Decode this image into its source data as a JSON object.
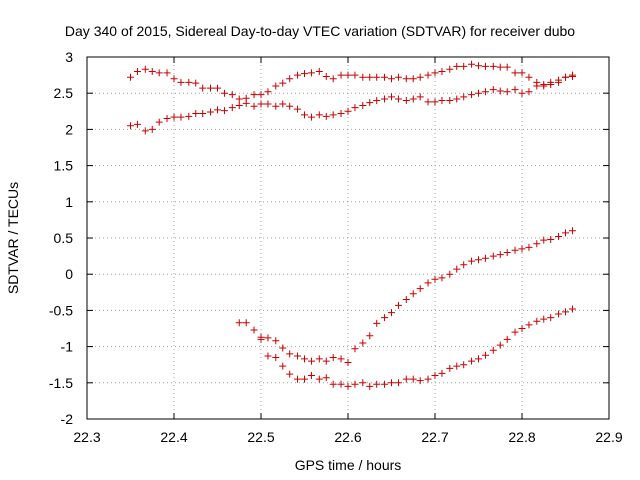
{
  "chart_data": {
    "type": "scatter",
    "title": "Day 340 of 2015, Sidereal Day-to-day VTEC variation (SDTVAR) for receiver dubo",
    "xlabel": "GPS time / hours",
    "ylabel": "SDTVAR / TECUs",
    "xlim": [
      22.3,
      22.9
    ],
    "ylim": [
      -2,
      3
    ],
    "xticks": [
      "22.3",
      "22.4",
      "22.5",
      "22.6",
      "22.7",
      "22.8",
      "22.9"
    ],
    "yticks": [
      "3",
      "2.5",
      "2",
      "1.5",
      "1",
      "0.5",
      "0",
      "-0.5",
      "-1",
      "-1.5",
      "-2"
    ],
    "grid": true,
    "marker": "+",
    "color": "#cc0000",
    "series": [
      {
        "name": "satellite-a",
        "x": [
          22.35,
          22.358,
          22.367,
          22.375,
          22.383,
          22.392,
          22.4,
          22.408,
          22.417,
          22.425,
          22.433,
          22.442,
          22.45,
          22.458,
          22.467,
          22.475,
          22.483,
          22.492,
          22.5,
          22.508,
          22.517,
          22.525,
          22.533,
          22.542,
          22.55,
          22.558,
          22.567,
          22.575,
          22.583,
          22.592,
          22.6,
          22.608,
          22.617,
          22.625,
          22.633,
          22.642,
          22.65,
          22.658,
          22.667,
          22.675,
          22.683,
          22.692,
          22.7,
          22.708,
          22.717,
          22.725,
          22.733,
          22.742,
          22.75,
          22.758,
          22.767,
          22.775,
          22.783,
          22.792,
          22.8,
          22.808,
          22.817,
          22.825,
          22.833,
          22.842,
          22.85,
          22.858
        ],
        "y": [
          2.72,
          2.8,
          2.83,
          2.8,
          2.78,
          2.78,
          2.7,
          2.65,
          2.65,
          2.64,
          2.57,
          2.57,
          2.57,
          2.5,
          2.48,
          2.42,
          2.43,
          2.48,
          2.48,
          2.52,
          2.6,
          2.64,
          2.7,
          2.75,
          2.77,
          2.78,
          2.8,
          2.73,
          2.7,
          2.75,
          2.75,
          2.75,
          2.72,
          2.72,
          2.72,
          2.72,
          2.7,
          2.72,
          2.7,
          2.7,
          2.72,
          2.75,
          2.78,
          2.8,
          2.83,
          2.87,
          2.87,
          2.9,
          2.88,
          2.87,
          2.87,
          2.86,
          2.86,
          2.78,
          2.78,
          2.72,
          2.65,
          2.62,
          2.65,
          2.68,
          2.72,
          2.73
        ]
      },
      {
        "name": "satellite-b",
        "x": [
          22.35,
          22.358,
          22.367,
          22.375,
          22.383,
          22.392,
          22.4,
          22.408,
          22.417,
          22.425,
          22.433,
          22.442,
          22.45,
          22.458,
          22.467,
          22.475,
          22.483,
          22.492,
          22.5,
          22.508,
          22.517,
          22.525,
          22.533,
          22.542,
          22.55,
          22.558,
          22.567,
          22.575,
          22.583,
          22.592,
          22.6,
          22.608,
          22.617,
          22.625,
          22.633,
          22.642,
          22.65,
          22.658,
          22.667,
          22.675,
          22.683,
          22.692,
          22.7,
          22.708,
          22.717,
          22.725,
          22.733,
          22.742,
          22.75,
          22.758,
          22.767,
          22.775,
          22.783,
          22.792,
          22.8,
          22.808,
          22.817,
          22.825,
          22.833,
          22.842,
          22.85,
          22.858
        ],
        "y": [
          2.05,
          2.07,
          1.98,
          2.0,
          2.1,
          2.15,
          2.17,
          2.17,
          2.18,
          2.22,
          2.22,
          2.24,
          2.27,
          2.26,
          2.3,
          2.33,
          2.36,
          2.32,
          2.35,
          2.35,
          2.32,
          2.35,
          2.32,
          2.28,
          2.2,
          2.17,
          2.2,
          2.18,
          2.2,
          2.22,
          2.25,
          2.3,
          2.33,
          2.37,
          2.4,
          2.42,
          2.45,
          2.42,
          2.4,
          2.42,
          2.45,
          2.38,
          2.38,
          2.4,
          2.4,
          2.42,
          2.45,
          2.48,
          2.5,
          2.52,
          2.55,
          2.53,
          2.52,
          2.55,
          2.5,
          2.52,
          2.6,
          2.6,
          2.62,
          2.65,
          2.72,
          2.75
        ]
      },
      {
        "name": "satellite-c",
        "x": [
          22.475,
          22.483,
          22.492,
          22.5,
          22.508,
          22.517,
          22.525,
          22.533,
          22.542,
          22.55,
          22.558,
          22.567,
          22.575,
          22.583,
          22.592,
          22.6,
          22.608,
          22.617,
          22.625,
          22.633,
          22.642,
          22.65,
          22.658,
          22.667,
          22.675,
          22.683,
          22.692,
          22.7,
          22.708,
          22.717,
          22.725,
          22.733,
          22.742,
          22.75,
          22.758,
          22.767,
          22.775,
          22.783,
          22.792,
          22.8,
          22.808,
          22.817,
          22.825,
          22.833,
          22.842,
          22.85,
          22.858
        ],
        "y": [
          -0.67,
          -0.67,
          -0.77,
          -0.87,
          -0.88,
          -0.92,
          -1.02,
          -1.1,
          -1.13,
          -1.17,
          -1.2,
          -1.17,
          -1.2,
          -1.15,
          -1.17,
          -1.22,
          -1.03,
          -0.95,
          -0.85,
          -0.68,
          -0.6,
          -0.53,
          -0.43,
          -0.35,
          -0.27,
          -0.2,
          -0.12,
          -0.07,
          -0.05,
          0.0,
          0.07,
          0.13,
          0.18,
          0.2,
          0.22,
          0.25,
          0.27,
          0.3,
          0.33,
          0.35,
          0.37,
          0.42,
          0.47,
          0.48,
          0.52,
          0.57,
          0.6
        ]
      },
      {
        "name": "satellite-d",
        "x": [
          22.5,
          22.508,
          22.517,
          22.525,
          22.533,
          22.542,
          22.55,
          22.558,
          22.567,
          22.575,
          22.583,
          22.592,
          22.6,
          22.608,
          22.617,
          22.625,
          22.633,
          22.642,
          22.65,
          22.658,
          22.667,
          22.675,
          22.683,
          22.692,
          22.7,
          22.708,
          22.717,
          22.725,
          22.733,
          22.742,
          22.75,
          22.758,
          22.767,
          22.775,
          22.783,
          22.792,
          22.8,
          22.808,
          22.817,
          22.825,
          22.833,
          22.842,
          22.85,
          22.858
        ],
        "y": [
          -0.9,
          -1.13,
          -1.15,
          -1.27,
          -1.38,
          -1.45,
          -1.45,
          -1.4,
          -1.45,
          -1.43,
          -1.52,
          -1.52,
          -1.55,
          -1.52,
          -1.5,
          -1.55,
          -1.52,
          -1.52,
          -1.5,
          -1.5,
          -1.45,
          -1.45,
          -1.47,
          -1.45,
          -1.4,
          -1.37,
          -1.3,
          -1.27,
          -1.25,
          -1.2,
          -1.17,
          -1.12,
          -1.05,
          -0.98,
          -0.9,
          -0.8,
          -0.75,
          -0.7,
          -0.65,
          -0.62,
          -0.6,
          -0.55,
          -0.52,
          -0.48
        ]
      }
    ]
  }
}
